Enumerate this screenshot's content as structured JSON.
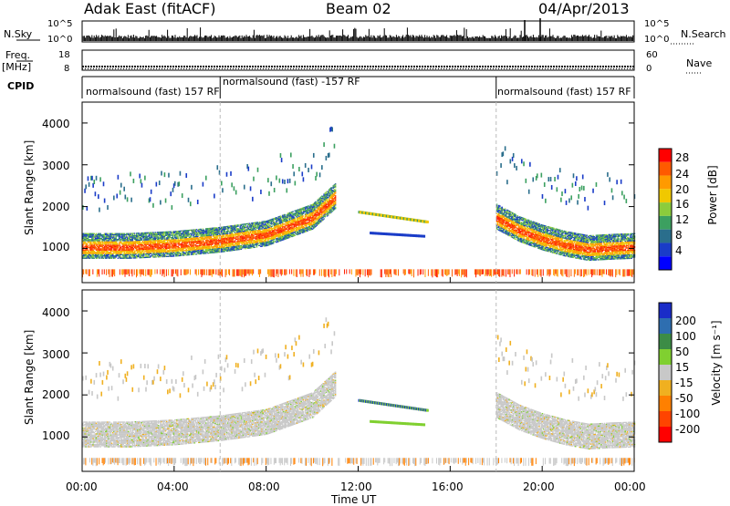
{
  "header": {
    "station": "Adak East (fitACF)",
    "beam": "Beam 02",
    "date": "04/Apr/2013"
  },
  "left_labels": {
    "nsky": "N.Sky",
    "freq": "Freq.",
    "freq_unit": "[MHz]",
    "cpid": "CPID"
  },
  "right_labels": {
    "nsearch": "N.Search",
    "nave": "Nave"
  },
  "nsky_ticks_left": [
    "10^5",
    "10^0"
  ],
  "nsky_ticks_right": [
    "10^5",
    "10^0"
  ],
  "freq_ticks": [
    "18",
    "8"
  ],
  "nave_ticks": [
    "60",
    "0"
  ],
  "cpid_segments": [
    {
      "label": "normalsound (fast) 157 RF",
      "start_hour": 0,
      "end_hour": 6
    },
    {
      "label": "normalsound (fast) -157 RF",
      "start_hour": 6,
      "end_hour": 18
    },
    {
      "label": "normalsound (fast) 157 RF",
      "start_hour": 18,
      "end_hour": 24
    }
  ],
  "x_axis": {
    "label": "Time UT",
    "ticks": [
      "00:00",
      "04:00",
      "08:00",
      "12:00",
      "16:00",
      "20:00",
      "00:00"
    ]
  },
  "power_panel": {
    "ylabel": "Slant Range [km]",
    "yticks": [
      "4000",
      "3000",
      "2000",
      "1000"
    ],
    "colorbar": {
      "label": "Power [dB]",
      "ticks": [
        "28",
        "24",
        "20",
        "16",
        "12",
        "8",
        "4"
      ],
      "colors": [
        "#ff0000",
        "#ff5a00",
        "#ff9a00",
        "#f0c800",
        "#8ccc3c",
        "#3ca060",
        "#2a6e8c",
        "#1a3cc8",
        "#0000ff"
      ]
    }
  },
  "velocity_panel": {
    "ylabel": "Slant Range [km]",
    "yticks": [
      "4000",
      "3000",
      "2000",
      "1000"
    ],
    "colorbar": {
      "label": "Velocity [m s⁻¹]",
      "ticks": [
        "200",
        "100",
        "50",
        "15",
        "-15",
        "-50",
        "-100",
        "-200"
      ],
      "colors": [
        "#1a2cc8",
        "#2e6eb0",
        "#3c8c46",
        "#80d030",
        "#c8c8c8",
        "#f0b020",
        "#ff8000",
        "#ff4400",
        "#ff0000"
      ]
    }
  },
  "chart_data": [
    {
      "type": "heatmap",
      "title": "Power",
      "quantity": "Power [dB]",
      "x_range_hours": [
        0,
        24
      ],
      "y_range_km": [
        180,
        4500
      ],
      "value_range": [
        0,
        30
      ],
      "ionospheric_band": {
        "x": [
          0,
          2,
          4,
          6,
          8,
          9,
          10,
          11,
          12,
          17.5,
          18,
          19,
          20,
          21,
          22,
          23,
          24
        ],
        "range_km": [
          1000,
          1000,
          1050,
          1150,
          1300,
          1500,
          1700,
          2200,
          null,
          null,
          1700,
          1400,
          1200,
          1050,
          950,
          980,
          1000
        ]
      }
    },
    {
      "type": "heatmap",
      "title": "Velocity",
      "quantity": "Velocity [m s⁻¹]",
      "x_range_hours": [
        0,
        24
      ],
      "y_range_km": [
        180,
        4500
      ],
      "value_range": [
        -200,
        200
      ]
    }
  ]
}
